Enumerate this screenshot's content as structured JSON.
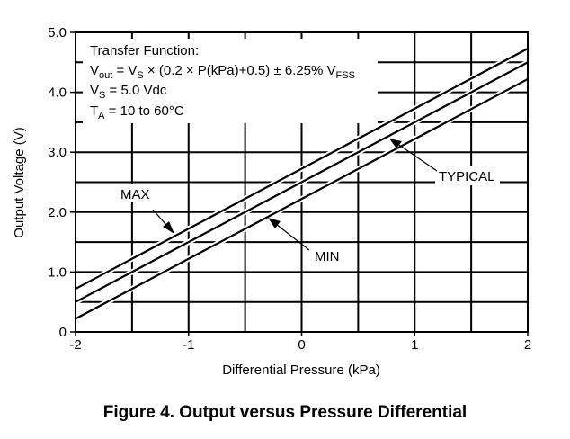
{
  "chart_data": {
    "type": "line",
    "title": "",
    "xlabel": "Differential Pressure (kPa)",
    "ylabel": "Output Voltage (V)",
    "xlim": [
      -2,
      2
    ],
    "ylim": [
      0,
      5
    ],
    "x_ticks": [
      "-2",
      "-1",
      "0",
      "1",
      "2"
    ],
    "y_ticks": [
      "0",
      "1.0",
      "2.0",
      "3.0",
      "4.0",
      "5.0"
    ],
    "grid": true,
    "series": [
      {
        "name": "MAX",
        "x": [
          -2,
          2
        ],
        "y": [
          0.72,
          4.73
        ]
      },
      {
        "name": "TYPICAL",
        "x": [
          -2,
          2
        ],
        "y": [
          0.5,
          4.5
        ]
      },
      {
        "name": "MIN",
        "x": [
          -2,
          2
        ],
        "y": [
          0.22,
          4.22
        ]
      }
    ],
    "annotations": {
      "transfer_title": "Transfer Function:",
      "equation_main": "V",
      "equation_sub_out": "out",
      "equation_eq": " = V",
      "equation_sub_s": "S",
      "equation_rest": " × (0.2 × P(kPa)+0.5) ± 6.25% V",
      "equation_sub_fss": "FSS",
      "vs_main": "V",
      "vs_sub": "S",
      "vs_rest": " = 5.0 Vdc",
      "ta_main": "T",
      "ta_sub": "A",
      "ta_rest": " = 10 to 60°C",
      "max_label": "MAX",
      "min_label": "MIN",
      "typical_label": "TYPICAL"
    }
  },
  "caption": "Figure 4. Output versus Pressure Differential"
}
